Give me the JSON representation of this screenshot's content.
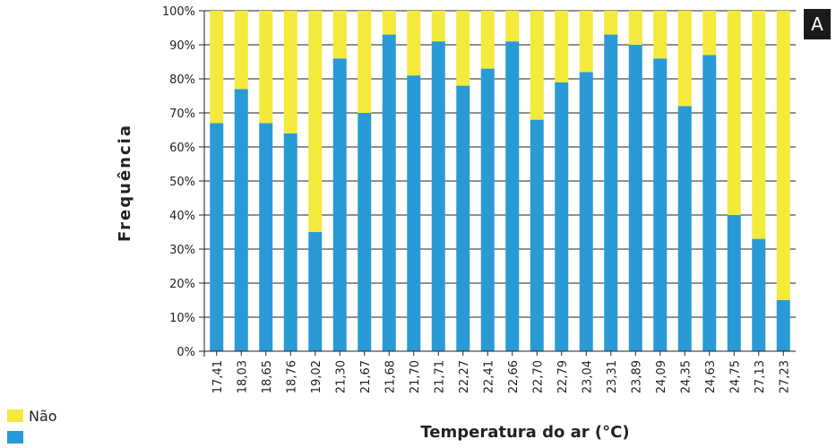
{
  "panel_label": "A",
  "legend": [
    {
      "label": "Não",
      "color": "#f3ea3c"
    },
    {
      "label": "",
      "color": "#2a9ad6"
    }
  ],
  "chart_data": {
    "type": "bar",
    "stacked": true,
    "xlabel": "Temperatura do ar (°C)",
    "ylabel": "Frequência",
    "ylim": [
      0,
      100
    ],
    "y_ticks": [
      "0%",
      "10%",
      "20%",
      "30%",
      "40%",
      "50%",
      "60%",
      "70%",
      "80%",
      "90%",
      "100%"
    ],
    "categories": [
      "17,41",
      "18,03",
      "18,65",
      "18,76",
      "19,02",
      "21,30",
      "21,67",
      "21,68",
      "21,70",
      "21,71",
      "22,27",
      "22,41",
      "22,66",
      "22,70",
      "22,79",
      "23,04",
      "23,31",
      "23,89",
      "24,09",
      "24,35",
      "24,63",
      "24,75",
      "27,13",
      "27,23"
    ],
    "series": [
      {
        "color": "#2a9ad6",
        "values": [
          67,
          77,
          67,
          64,
          35,
          86,
          70,
          93,
          81,
          91,
          78,
          83,
          91,
          68,
          79,
          82,
          93,
          90,
          86,
          72,
          87,
          40,
          33,
          15
        ]
      },
      {
        "name": "Não",
        "color": "#f3ea3c",
        "values": [
          33,
          23,
          33,
          36,
          65,
          14,
          30,
          7,
          19,
          9,
          22,
          17,
          9,
          32,
          21,
          18,
          7,
          10,
          14,
          28,
          13,
          60,
          67,
          85
        ]
      }
    ],
    "grid": true,
    "legend_position": "bottom-left"
  }
}
